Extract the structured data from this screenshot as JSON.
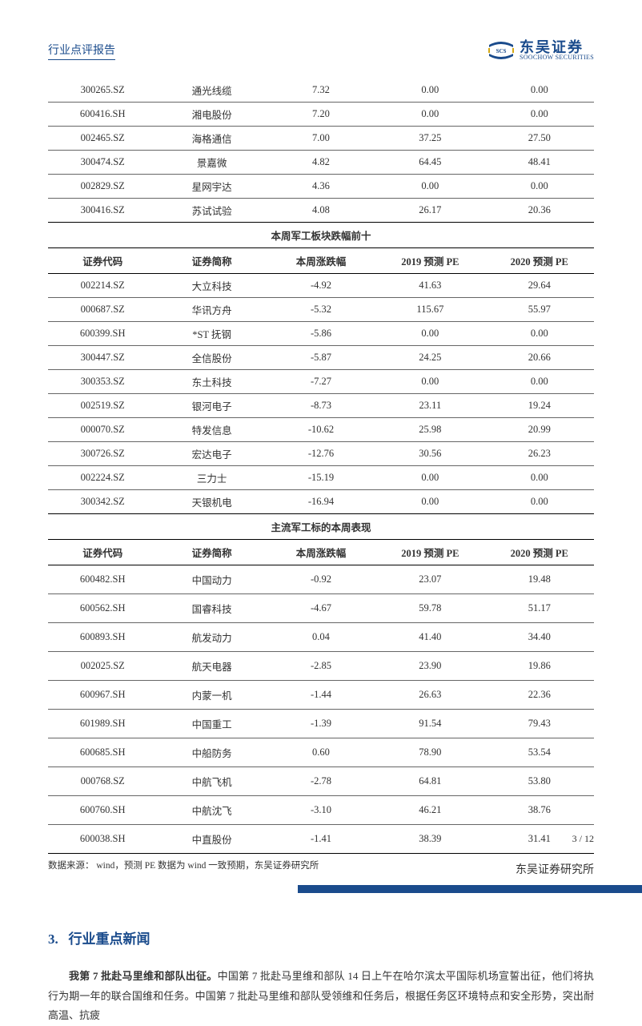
{
  "header": {
    "report_title": "行业点评报告",
    "logo_cn": "东吴证券",
    "logo_en": "SOOCHOW SECURITIES",
    "logo_badge": "SCS"
  },
  "columns": {
    "c1": "证券代码",
    "c2": "证券简称",
    "c3": "本周涨跌幅",
    "c4": "2019 预测 PE",
    "c5": "2020 预测 PE"
  },
  "top_rows": [
    {
      "code": "300265.SZ",
      "name": "通光线缆",
      "chg": "7.32",
      "pe19": "0.00",
      "pe20": "0.00"
    },
    {
      "code": "600416.SH",
      "name": "湘电股份",
      "chg": "7.20",
      "pe19": "0.00",
      "pe20": "0.00"
    },
    {
      "code": "002465.SZ",
      "name": "海格通信",
      "chg": "7.00",
      "pe19": "37.25",
      "pe20": "27.50"
    },
    {
      "code": "300474.SZ",
      "name": "景嘉微",
      "chg": "4.82",
      "pe19": "64.45",
      "pe20": "48.41"
    },
    {
      "code": "002829.SZ",
      "name": "星网宇达",
      "chg": "4.36",
      "pe19": "0.00",
      "pe20": "0.00"
    },
    {
      "code": "300416.SZ",
      "name": "苏试试验",
      "chg": "4.08",
      "pe19": "26.17",
      "pe20": "20.36"
    }
  ],
  "decliners_title": "本周军工板块跌幅前十",
  "decliners_rows": [
    {
      "code": "002214.SZ",
      "name": "大立科技",
      "chg": "-4.92",
      "pe19": "41.63",
      "pe20": "29.64"
    },
    {
      "code": "000687.SZ",
      "name": "华讯方舟",
      "chg": "-5.32",
      "pe19": "115.67",
      "pe20": "55.97"
    },
    {
      "code": "600399.SH",
      "name": "*ST 抚钢",
      "chg": "-5.86",
      "pe19": "0.00",
      "pe20": "0.00"
    },
    {
      "code": "300447.SZ",
      "name": "全信股份",
      "chg": "-5.87",
      "pe19": "24.25",
      "pe20": "20.66"
    },
    {
      "code": "300353.SZ",
      "name": "东土科技",
      "chg": "-7.27",
      "pe19": "0.00",
      "pe20": "0.00"
    },
    {
      "code": "002519.SZ",
      "name": "银河电子",
      "chg": "-8.73",
      "pe19": "23.11",
      "pe20": "19.24"
    },
    {
      "code": "000070.SZ",
      "name": "特发信息",
      "chg": "-10.62",
      "pe19": "25.98",
      "pe20": "20.99"
    },
    {
      "code": "300726.SZ",
      "name": "宏达电子",
      "chg": "-12.76",
      "pe19": "30.56",
      "pe20": "26.23"
    },
    {
      "code": "002224.SZ",
      "name": "三力士",
      "chg": "-15.19",
      "pe19": "0.00",
      "pe20": "0.00"
    },
    {
      "code": "300342.SZ",
      "name": "天银机电",
      "chg": "-16.94",
      "pe19": "0.00",
      "pe20": "0.00"
    }
  ],
  "mainstream_title": "主流军工标的本周表现",
  "mainstream_rows": [
    {
      "code": "600482.SH",
      "name": "中国动力",
      "chg": "-0.92",
      "pe19": "23.07",
      "pe20": "19.48"
    },
    {
      "code": "600562.SH",
      "name": "国睿科技",
      "chg": "-4.67",
      "pe19": "59.78",
      "pe20": "51.17"
    },
    {
      "code": "600893.SH",
      "name": "航发动力",
      "chg": "0.04",
      "pe19": "41.40",
      "pe20": "34.40"
    },
    {
      "code": "002025.SZ",
      "name": "航天电器",
      "chg": "-2.85",
      "pe19": "23.90",
      "pe20": "19.86"
    },
    {
      "code": "600967.SH",
      "name": "内蒙一机",
      "chg": "-1.44",
      "pe19": "26.63",
      "pe20": "22.36"
    },
    {
      "code": "601989.SH",
      "name": "中国重工",
      "chg": "-1.39",
      "pe19": "91.54",
      "pe20": "79.43"
    },
    {
      "code": "600685.SH",
      "name": "中船防务",
      "chg": "0.60",
      "pe19": "78.90",
      "pe20": "53.54"
    },
    {
      "code": "000768.SZ",
      "name": "中航飞机",
      "chg": "-2.78",
      "pe19": "64.81",
      "pe20": "53.80"
    },
    {
      "code": "600760.SH",
      "name": "中航沈飞",
      "chg": "-3.10",
      "pe19": "46.21",
      "pe20": "38.76"
    },
    {
      "code": "600038.SH",
      "name": "中直股份",
      "chg": "-1.41",
      "pe19": "38.39",
      "pe20": "31.41"
    }
  ],
  "source_note": "数据来源：   wind，预测 PE 数据为 wind 一致预期，东吴证券研究所",
  "section3": {
    "num": "3.",
    "title": "行业重点新闻",
    "lead_bold": "我第 7 批赴马里维和部队出征。",
    "body": "中国第 7 批赴马里维和部队 14 日上午在哈尔滨太平国际机场宣誓出征，他们将执行为期一年的联合国维和任务。中国第 7 批赴马里维和部队受领维和任务后，根据任务区环境特点和安全形势，突出耐高温、抗疲"
  },
  "footer": {
    "page": "3 / 12",
    "institute": "东吴证券研究所"
  },
  "colors": {
    "brand": "#1a4b8c",
    "text": "#333333",
    "border": "#666666",
    "bg": "#ffffff"
  },
  "typography": {
    "body_fontsize_pt": 10,
    "heading_fontsize_pt": 13,
    "table_fontsize_pt": 9.5,
    "font_family": "SimSun"
  }
}
